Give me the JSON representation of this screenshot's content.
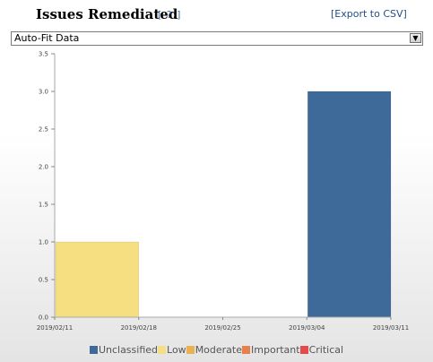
{
  "header": {
    "title": "Issues Remediated",
    "help_link": "[ ? ]",
    "export_link": "[Export to CSV]"
  },
  "view_select": {
    "selected": "Auto-Fit Data",
    "arrow_icon": "chevron-down-icon"
  },
  "chart_data": {
    "type": "bar",
    "stacked": true,
    "x_tick_labels": [
      "2019/02/11",
      "2019/02/18",
      "2019/02/25",
      "2019/03/04",
      "2019/03/11"
    ],
    "y_tick_labels": [
      "0.0",
      "0.5",
      "1.0",
      "1.5",
      "2.0",
      "2.5",
      "3.0",
      "3.5"
    ],
    "ylim": [
      0,
      3.5
    ],
    "grid": false,
    "legend_position": "bottom",
    "categories": [
      "2019/02/11",
      "2019/02/18",
      "2019/02/25",
      "2019/03/04"
    ],
    "series": [
      {
        "name": "Unclassified",
        "color": "#3e6a99",
        "values": [
          0,
          0,
          0,
          3
        ]
      },
      {
        "name": "Low",
        "color": "#f5df80",
        "values": [
          1,
          0,
          0,
          0
        ]
      },
      {
        "name": "Moderate",
        "color": "#e9b14f",
        "values": [
          0,
          0,
          0,
          0
        ]
      },
      {
        "name": "Important",
        "color": "#e8804c",
        "values": [
          0,
          0,
          0,
          0
        ]
      },
      {
        "name": "Critical",
        "color": "#e44a4a",
        "values": [
          0,
          0,
          0,
          0
        ]
      }
    ]
  }
}
